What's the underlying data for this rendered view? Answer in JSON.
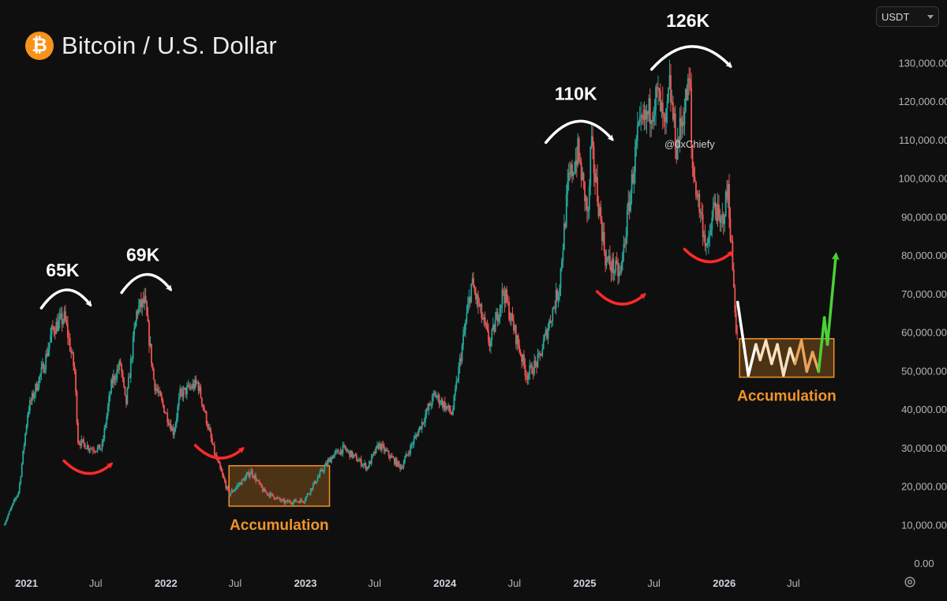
{
  "header": {
    "title": "Bitcoin / U.S. Dollar",
    "logo_icon": "bitcoin-logo-icon",
    "logo_glyph": "₿",
    "currency": "USDT",
    "settings_icon": "gear-icon"
  },
  "colors": {
    "background": "#0f0f0f",
    "up": "#26a69a",
    "down": "#ef5350",
    "accumulation_box": "#f0932b",
    "accumulation_text": "#f0932b",
    "annotation_white": "#ffffff",
    "annotation_red": "#ff2a2a",
    "annotation_green": "#4cd137",
    "logo": "#f7931a"
  },
  "watermark": "@0xChiefy",
  "chart_data": {
    "type": "line",
    "title": "Bitcoin / U.S. Dollar",
    "xlabel": "",
    "ylabel": "",
    "y_range": [
      0,
      135000
    ],
    "y_ticks": [
      0,
      10000,
      20000,
      30000,
      40000,
      50000,
      60000,
      70000,
      80000,
      90000,
      100000,
      110000,
      120000,
      130000
    ],
    "y_tick_labels": [
      "0.00",
      "10,000.00",
      "20,000.00",
      "30,000.00",
      "40,000.00",
      "50,000.00",
      "60,000.00",
      "70,000.00",
      "80,000.00",
      "90,000.00",
      "100,000.00",
      "110,000.00",
      "120,000.00",
      "130,000.00"
    ],
    "x_range": [
      "2020-11-01",
      "2026-12-31"
    ],
    "x_ticks": [
      {
        "date": "2021-01-01",
        "label": "2021",
        "major": true
      },
      {
        "date": "2021-07-01",
        "label": "Jul",
        "major": false
      },
      {
        "date": "2022-01-01",
        "label": "2022",
        "major": true
      },
      {
        "date": "2022-07-01",
        "label": "Jul",
        "major": false
      },
      {
        "date": "2023-01-01",
        "label": "2023",
        "major": true
      },
      {
        "date": "2023-07-01",
        "label": "Jul",
        "major": false
      },
      {
        "date": "2024-01-01",
        "label": "2024",
        "major": true
      },
      {
        "date": "2024-07-01",
        "label": "Jul",
        "major": false
      },
      {
        "date": "2025-01-01",
        "label": "2025",
        "major": true
      },
      {
        "date": "2025-07-01",
        "label": "Jul",
        "major": false
      },
      {
        "date": "2026-01-01",
        "label": "2026",
        "major": true
      },
      {
        "date": "2026-07-01",
        "label": "Jul",
        "major": false
      }
    ],
    "grid": false,
    "series": [
      {
        "points": [
          [
            "2020-11-05",
            10000
          ],
          [
            "2020-12-15",
            19000
          ],
          [
            "2021-01-08",
            40000
          ],
          [
            "2021-02-20",
            52000
          ],
          [
            "2021-03-13",
            61000
          ],
          [
            "2021-04-14",
            64000
          ],
          [
            "2021-05-10",
            50000
          ],
          [
            "2021-05-19",
            32000
          ],
          [
            "2021-06-22",
            30000
          ],
          [
            "2021-07-20",
            30000
          ],
          [
            "2021-08-15",
            47000
          ],
          [
            "2021-09-07",
            52000
          ],
          [
            "2021-09-21",
            41000
          ],
          [
            "2021-10-20",
            66000
          ],
          [
            "2021-11-10",
            68000
          ],
          [
            "2021-12-04",
            47000
          ],
          [
            "2022-01-24",
            34000
          ],
          [
            "2022-02-10",
            44000
          ],
          [
            "2022-03-28",
            47000
          ],
          [
            "2022-05-10",
            29000
          ],
          [
            "2022-06-18",
            18000
          ],
          [
            "2022-08-15",
            24000
          ],
          [
            "2022-09-15",
            19000
          ],
          [
            "2022-11-09",
            16000
          ],
          [
            "2022-12-31",
            16500
          ],
          [
            "2023-02-15",
            24000
          ],
          [
            "2023-03-15",
            28000
          ],
          [
            "2023-04-14",
            30000
          ],
          [
            "2023-06-15",
            25000
          ],
          [
            "2023-07-15",
            31000
          ],
          [
            "2023-09-11",
            25000
          ],
          [
            "2023-10-24",
            34000
          ],
          [
            "2023-12-08",
            44000
          ],
          [
            "2024-01-23",
            39000
          ],
          [
            "2024-03-14",
            73000
          ],
          [
            "2024-05-01",
            57000
          ],
          [
            "2024-06-05",
            71000
          ],
          [
            "2024-08-05",
            49000
          ],
          [
            "2024-09-06",
            53000
          ],
          [
            "2024-10-29",
            72000
          ],
          [
            "2024-11-22",
            99000
          ],
          [
            "2024-12-17",
            107000
          ],
          [
            "2025-01-13",
            90000
          ],
          [
            "2025-01-20",
            109000
          ],
          [
            "2025-02-28",
            79000
          ],
          [
            "2025-04-07",
            75000
          ],
          [
            "2025-05-22",
            111000
          ],
          [
            "2025-07-14",
            122000
          ],
          [
            "2025-08-02",
            112000
          ],
          [
            "2025-08-14",
            124000
          ],
          [
            "2025-09-01",
            108000
          ],
          [
            "2025-10-06",
            126000
          ],
          [
            "2025-10-11",
            104000
          ],
          [
            "2025-11-21",
            81000
          ],
          [
            "2025-12-10",
            94000
          ],
          [
            "2025-12-25",
            87000
          ],
          [
            "2026-01-14",
            97000
          ],
          [
            "2026-02-05",
            60000
          ]
        ]
      }
    ],
    "annotations": [
      {
        "label": "65K",
        "date": "2021-04-14",
        "value": 64000
      },
      {
        "label": "69K",
        "date": "2021-11-10",
        "value": 68000
      },
      {
        "label": "110K",
        "date": "2024-12-17",
        "value": 107000
      },
      {
        "label": "126K",
        "date": "2025-10-06",
        "value": 126000
      }
    ],
    "accumulation_zones": [
      {
        "label": "Accumulation",
        "x_start": "2022-06-15",
        "x_end": "2023-03-05",
        "y_low": 15000,
        "y_high": 25500
      },
      {
        "label": "Accumulation",
        "x_start": "2026-02-10",
        "x_end": "2026-10-15",
        "y_low": 48500,
        "y_high": 58500
      }
    ],
    "projection_path": [
      [
        "2026-02-05",
        68000
      ],
      [
        "2026-03-05",
        49000
      ],
      [
        "2026-03-25",
        57000
      ],
      [
        "2026-04-05",
        53000
      ],
      [
        "2026-04-20",
        58000
      ],
      [
        "2026-05-05",
        52000
      ],
      [
        "2026-05-20",
        57000
      ],
      [
        "2026-06-05",
        49000
      ],
      [
        "2026-06-22",
        56000
      ],
      [
        "2026-07-05",
        52000
      ],
      [
        "2026-07-22",
        58000
      ],
      [
        "2026-08-05",
        50000
      ],
      [
        "2026-08-20",
        55000
      ],
      [
        "2026-09-05",
        50000
      ],
      [
        "2026-09-20",
        64000
      ],
      [
        "2026-09-28",
        57000
      ],
      [
        "2026-10-20",
        80000
      ]
    ]
  }
}
